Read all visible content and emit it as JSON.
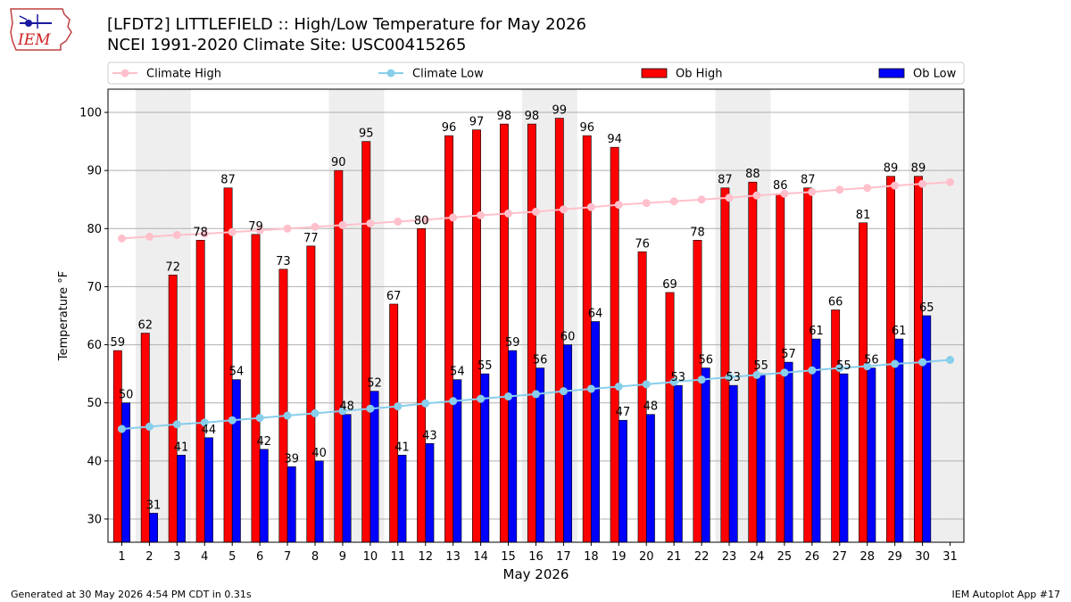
{
  "chart_data": {
    "type": "bar",
    "title": "[LFDT2] LITTLEFIELD :: High/Low Temperature for May 2026",
    "subtitle": "NCEI 1991-2020 Climate Site: USC00415265",
    "xlabel": "May 2026",
    "ylabel": "Temperature °F",
    "ylim": [
      26,
      104
    ],
    "yticks": [
      30,
      40,
      50,
      60,
      70,
      80,
      90,
      100
    ],
    "grid": true,
    "legend_position": "top",
    "categories": [
      "1",
      "2",
      "3",
      "4",
      "5",
      "6",
      "7",
      "8",
      "9",
      "10",
      "11",
      "12",
      "13",
      "14",
      "15",
      "16",
      "17",
      "18",
      "19",
      "20",
      "21",
      "22",
      "23",
      "24",
      "25",
      "26",
      "27",
      "28",
      "29",
      "30",
      "31"
    ],
    "weekend_shading_days": [
      2,
      3,
      9,
      10,
      16,
      17,
      23,
      24,
      30,
      31
    ],
    "series": [
      {
        "name": "Climate High",
        "kind": "line",
        "color": "#ffc0cb",
        "values": [
          78.3,
          78.6,
          78.9,
          79.1,
          79.4,
          79.7,
          80.0,
          80.3,
          80.6,
          80.9,
          81.2,
          81.5,
          81.9,
          82.3,
          82.6,
          82.9,
          83.3,
          83.7,
          84.1,
          84.4,
          84.7,
          85.0,
          85.3,
          85.7,
          86.0,
          86.3,
          86.7,
          87.0,
          87.4,
          87.7,
          88.0
        ]
      },
      {
        "name": "Climate Low",
        "kind": "line",
        "color": "#87ceeb",
        "values": [
          45.5,
          45.9,
          46.3,
          46.6,
          47.0,
          47.4,
          47.8,
          48.2,
          48.6,
          49.0,
          49.4,
          49.9,
          50.3,
          50.7,
          51.1,
          51.5,
          52.0,
          52.4,
          52.8,
          53.2,
          53.6,
          54.0,
          54.4,
          54.8,
          55.2,
          55.6,
          56.0,
          56.3,
          56.7,
          57.0,
          57.4
        ]
      },
      {
        "name": "Ob High",
        "kind": "bar",
        "color": "#ff0000",
        "values": [
          59,
          62,
          72,
          78,
          87,
          79,
          73,
          77,
          90,
          95,
          67,
          80,
          96,
          97,
          98,
          98,
          99,
          96,
          94,
          76,
          69,
          78,
          87,
          88,
          86,
          87,
          66,
          81,
          89,
          89,
          null
        ]
      },
      {
        "name": "Ob Low",
        "kind": "bar",
        "color": "#0000ff",
        "values": [
          50,
          31,
          41,
          44,
          54,
          42,
          39,
          40,
          48,
          52,
          41,
          43,
          54,
          55,
          59,
          56,
          60,
          64,
          47,
          48,
          53,
          56,
          53,
          55,
          57,
          61,
          55,
          56,
          61,
          65,
          null
        ]
      }
    ]
  },
  "footer": {
    "left": "Generated at 30 May 2026 4:54 PM CDT in 0.31s",
    "right": "IEM Autoplot App #17"
  },
  "logo": {
    "text": "IEM",
    "icon": "iowa-state-outline-logo"
  }
}
